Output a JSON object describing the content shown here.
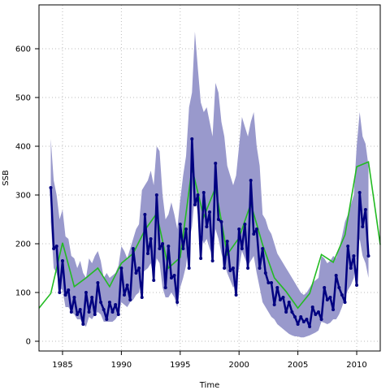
{
  "chart_data": {
    "type": "line",
    "title": "",
    "xlabel": "Time",
    "ylabel": "SSB",
    "xlim": [
      1983,
      2012
    ],
    "ylim": [
      -20,
      690
    ],
    "grid": true,
    "x_ticks": [
      1985,
      1990,
      1995,
      2000,
      2005,
      2010
    ],
    "x_tick_labels": [
      "1985",
      "1990",
      "1995",
      "2000",
      "2005",
      "2010"
    ],
    "y_ticks": [
      0,
      100,
      200,
      300,
      400,
      500,
      600
    ],
    "y_tick_labels": [
      "0",
      "100",
      "200",
      "300",
      "400",
      "500",
      "600"
    ],
    "colors": {
      "band": "#9999cc",
      "estimate": "#000080",
      "survey": "#22bb22",
      "grid": "#bbbbbb",
      "frame": "#000000"
    },
    "series": [
      {
        "kind": "band",
        "x": [
          1984.0,
          1984.25,
          1984.5,
          1984.75,
          1985.0,
          1985.25,
          1985.5,
          1985.75,
          1986.0,
          1986.25,
          1986.5,
          1986.75,
          1987.0,
          1987.25,
          1987.5,
          1987.75,
          1988.0,
          1988.25,
          1988.5,
          1988.75,
          1989.0,
          1989.25,
          1989.5,
          1989.75,
          1990.0,
          1990.25,
          1990.5,
          1990.75,
          1991.0,
          1991.25,
          1991.5,
          1991.75,
          1992.0,
          1992.25,
          1992.5,
          1992.75,
          1993.0,
          1993.25,
          1993.5,
          1993.75,
          1994.0,
          1994.25,
          1994.5,
          1994.75,
          1995.0,
          1995.25,
          1995.5,
          1995.75,
          1996.0,
          1996.25,
          1996.5,
          1996.75,
          1997.0,
          1997.25,
          1997.5,
          1997.75,
          1998.0,
          1998.25,
          1998.5,
          1998.75,
          1999.0,
          1999.25,
          1999.5,
          1999.75,
          2000.0,
          2000.25,
          2000.5,
          2000.75,
          2001.0,
          2001.25,
          2001.5,
          2001.75,
          2002.0,
          2002.25,
          2002.5,
          2002.75,
          2003.0,
          2003.25,
          2003.5,
          2003.75,
          2004.0,
          2004.25,
          2004.5,
          2004.75,
          2005.0,
          2005.25,
          2005.5,
          2005.75,
          2006.0,
          2006.25,
          2006.5,
          2006.75,
          2007.0,
          2007.25,
          2007.5,
          2007.75,
          2008.0,
          2008.25,
          2008.5,
          2008.75,
          2009.0,
          2009.25,
          2009.5,
          2009.75,
          2010.0,
          2010.25,
          2010.5,
          2010.75,
          2011.0
        ],
        "upper": [
          415,
          330,
          300,
          250,
          270,
          215,
          210,
          175,
          170,
          150,
          165,
          140,
          130,
          170,
          160,
          175,
          185,
          165,
          130,
          140,
          130,
          135,
          140,
          155,
          195,
          185,
          170,
          190,
          210,
          230,
          240,
          310,
          320,
          330,
          350,
          320,
          400,
          390,
          300,
          250,
          260,
          285,
          260,
          230,
          290,
          340,
          380,
          480,
          510,
          635,
          560,
          490,
          470,
          480,
          450,
          420,
          530,
          510,
          450,
          420,
          360,
          340,
          320,
          340,
          400,
          460,
          440,
          420,
          450,
          470,
          400,
          360,
          260,
          250,
          230,
          220,
          200,
          180,
          170,
          160,
          150,
          140,
          130,
          120,
          110,
          100,
          95,
          100,
          110,
          120,
          125,
          130,
          175,
          170,
          160,
          165,
          175,
          170,
          190,
          215,
          245,
          260,
          280,
          300,
          400,
          470,
          420,
          405,
          360
        ],
        "lower": [
          245,
          150,
          140,
          110,
          105,
          70,
          70,
          60,
          55,
          45,
          45,
          35,
          30,
          50,
          45,
          55,
          60,
          55,
          40,
          40,
          40,
          40,
          45,
          55,
          80,
          75,
          70,
          80,
          85,
          95,
          100,
          140,
          145,
          150,
          160,
          130,
          170,
          160,
          110,
          90,
          90,
          100,
          90,
          70,
          110,
          130,
          155,
          205,
          235,
          300,
          260,
          220,
          200,
          210,
          190,
          175,
          230,
          210,
          180,
          160,
          140,
          125,
          110,
          120,
          150,
          185,
          170,
          155,
          165,
          175,
          140,
          110,
          80,
          70,
          60,
          50,
          45,
          35,
          30,
          25,
          20,
          15,
          12,
          10,
          10,
          8,
          8,
          10,
          12,
          15,
          18,
          22,
          40,
          38,
          35,
          38,
          45,
          45,
          55,
          70,
          90,
          105,
          115,
          130,
          180,
          210,
          175,
          160,
          130
        ]
      },
      {
        "kind": "estimate",
        "x": [
          1984.0,
          1984.25,
          1984.5,
          1984.75,
          1985.0,
          1985.25,
          1985.5,
          1985.75,
          1986.0,
          1986.25,
          1986.5,
          1986.75,
          1987.0,
          1987.25,
          1987.5,
          1987.75,
          1988.0,
          1988.25,
          1988.5,
          1988.75,
          1989.0,
          1989.25,
          1989.5,
          1989.75,
          1990.0,
          1990.25,
          1990.5,
          1990.75,
          1991.0,
          1991.25,
          1991.5,
          1991.75,
          1992.0,
          1992.25,
          1992.5,
          1992.75,
          1993.0,
          1993.25,
          1993.5,
          1993.75,
          1994.0,
          1994.25,
          1994.5,
          1994.75,
          1995.0,
          1995.25,
          1995.5,
          1995.75,
          1996.0,
          1996.25,
          1996.5,
          1996.75,
          1997.0,
          1997.25,
          1997.5,
          1997.75,
          1998.0,
          1998.25,
          1998.5,
          1998.75,
          1999.0,
          1999.25,
          1999.5,
          1999.75,
          2000.0,
          2000.25,
          2000.5,
          2000.75,
          2001.0,
          2001.25,
          2001.5,
          2001.75,
          2002.0,
          2002.25,
          2002.5,
          2002.75,
          2003.0,
          2003.25,
          2003.5,
          2003.75,
          2004.0,
          2004.25,
          2004.5,
          2004.75,
          2005.0,
          2005.25,
          2005.5,
          2005.75,
          2006.0,
          2006.25,
          2006.5,
          2006.75,
          2007.0,
          2007.25,
          2007.5,
          2007.75,
          2008.0,
          2008.25,
          2008.5,
          2008.75,
          2009.0,
          2009.25,
          2009.5,
          2009.75,
          2010.0,
          2010.25,
          2010.5,
          2010.75,
          2011.0
        ],
        "y": [
          315,
          190,
          195,
          100,
          165,
          95,
          105,
          60,
          90,
          55,
          65,
          35,
          100,
          60,
          90,
          55,
          120,
          80,
          65,
          45,
          80,
          60,
          75,
          55,
          150,
          95,
          115,
          85,
          190,
          140,
          150,
          90,
          260,
          180,
          210,
          125,
          300,
          190,
          200,
          110,
          195,
          130,
          135,
          80,
          240,
          190,
          230,
          150,
          415,
          280,
          300,
          170,
          305,
          235,
          265,
          165,
          365,
          250,
          245,
          150,
          205,
          145,
          150,
          95,
          230,
          190,
          240,
          150,
          330,
          220,
          230,
          150,
          190,
          140,
          120,
          120,
          75,
          110,
          85,
          90,
          60,
          80,
          60,
          50,
          35,
          50,
          40,
          45,
          30,
          70,
          55,
          60,
          45,
          110,
          85,
          90,
          65,
          135,
          110,
          95,
          80,
          195,
          150,
          175,
          115,
          305,
          235,
          270,
          175
        ]
      },
      {
        "kind": "survey",
        "x": [
          1983.0,
          1984.0,
          1985.0,
          1986.0,
          1987.0,
          1988.0,
          1989.0,
          1990.0,
          1991.0,
          1992.0,
          1993.0,
          1994.0,
          1995.0,
          1996.0,
          1997.0,
          1998.0,
          1999.0,
          2000.0,
          2001.0,
          2002.0,
          2003.0,
          2004.0,
          2005.0,
          2006.0,
          2007.0,
          2008.0,
          2009.0,
          2010.0,
          2011.0,
          2012.0
        ],
        "y": [
          68,
          98,
          202,
          112,
          130,
          150,
          112,
          160,
          180,
          228,
          262,
          150,
          172,
          355,
          255,
          315,
          178,
          212,
          282,
          198,
          130,
          102,
          68,
          98,
          178,
          162,
          218,
          358,
          368,
          198
        ]
      }
    ]
  }
}
